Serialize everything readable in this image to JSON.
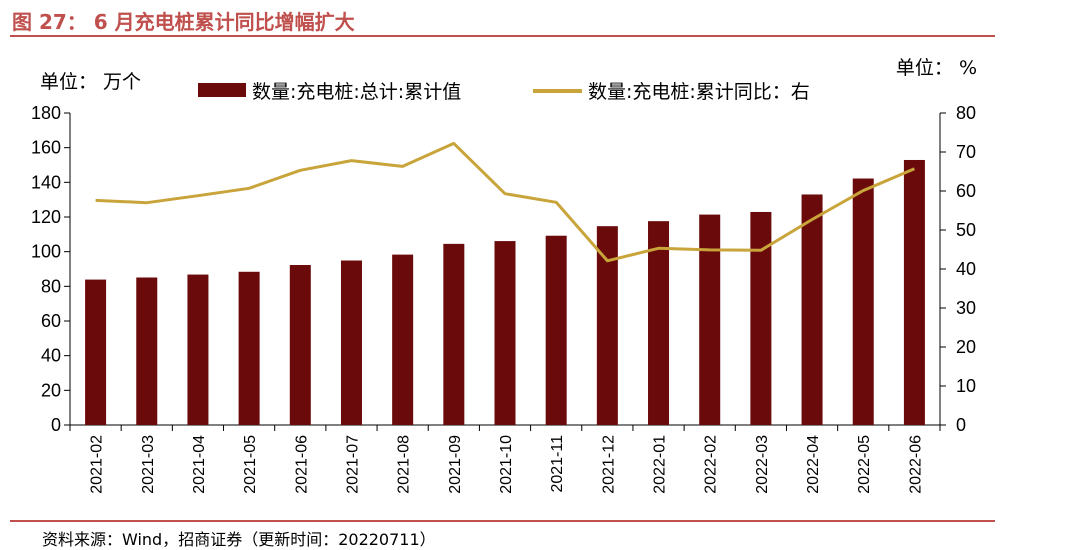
{
  "figure": {
    "title": "图 27： 6 月充电桩累计同比增幅扩大",
    "source": "资料来源：Wind，招商证券（更新时间：20220711）"
  },
  "colors": {
    "bar": "#6b0a0a",
    "line": "#c8a43a",
    "accent": "#c0504d",
    "axis": "#000000"
  },
  "chart_data": {
    "type": "bar",
    "title": "",
    "categories": [
      "2021-02",
      "2021-03",
      "2021-04",
      "2021-05",
      "2021-06",
      "2021-07",
      "2021-08",
      "2021-09",
      "2021-10",
      "2021-11",
      "2021-12",
      "2022-01",
      "2022-02",
      "2022-03",
      "2022-04",
      "2022-05",
      "2022-06"
    ],
    "left_axis": {
      "unit_label": "单位： 万个",
      "ylim": [
        0,
        180
      ],
      "ticks": [
        0,
        20,
        40,
        60,
        80,
        100,
        120,
        140,
        160,
        180
      ]
    },
    "right_axis": {
      "unit_label": "单位： %",
      "ylim": [
        0,
        80
      ],
      "ticks": [
        0,
        10,
        20,
        30,
        40,
        50,
        60,
        70,
        80
      ]
    },
    "series": [
      {
        "name": "数量:充电桩:总计:累计值",
        "type": "bar",
        "axis": "left",
        "values": [
          83.9,
          85.1,
          86.8,
          88.4,
          92.3,
          94.9,
          98.3,
          104.5,
          106.1,
          109.2,
          114.7,
          117.6,
          121.4,
          122.9,
          133.0,
          142.2,
          152.9
        ]
      },
      {
        "name": "数量:充电桩:累计同比：右",
        "type": "line",
        "axis": "right",
        "values": [
          57.6,
          57.0,
          58.8,
          60.7,
          65.3,
          67.8,
          66.3,
          72.2,
          59.3,
          57.1,
          42.1,
          45.3,
          44.9,
          44.8,
          52.7,
          60.1,
          65.7
        ]
      }
    ],
    "grid": false,
    "legend_position": "top"
  }
}
